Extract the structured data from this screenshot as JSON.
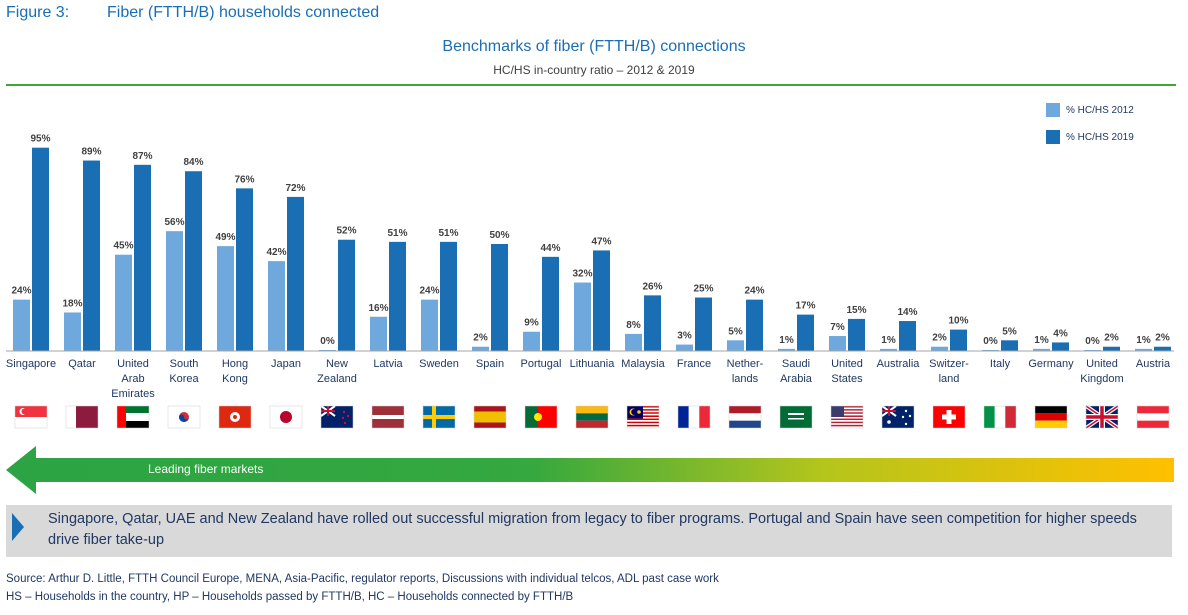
{
  "figure_label": "Figure 3:",
  "figure_title": "Fiber (FTTH/B) households connected",
  "banner": "Leading fiber markets",
  "callout": "Singapore, Qatar, UAE and New Zealand have rolled out successful migration from legacy to fiber programs. Portugal and Spain have seen competition for higher speeds drive fiber take-up",
  "source": "Source: Arthur D. Little, FTTH Council Europe, MENA, Asia-Pacific, regulator reports, Discussions with individual telcos, ADL past case work",
  "definitions": "HS – Households in the country, HP – Households passed by FTTH/B, HC – Households connected by FTTH/B",
  "colors": {
    "series_2012": "#6fa8dc",
    "series_2019": "#1a6eb3",
    "banner_start": "#2ca444",
    "banner_end": "#ffc000"
  },
  "chart_data": {
    "type": "bar",
    "title": "Benchmarks of fiber (FTTH/B) connections",
    "subtitle": "HC/HS in-country ratio – 2012 & 2019",
    "xlabel": "",
    "ylabel": "",
    "ylim": [
      0,
      100
    ],
    "grid": false,
    "legend_position": "top-right",
    "categories": [
      [
        "Singapore"
      ],
      [
        "Qatar"
      ],
      [
        "United",
        "Arab",
        "Emirates"
      ],
      [
        "South",
        "Korea"
      ],
      [
        "Hong",
        "Kong"
      ],
      [
        "Japan"
      ],
      [
        "New",
        "Zealand"
      ],
      [
        "Latvia"
      ],
      [
        "Sweden"
      ],
      [
        "Spain"
      ],
      [
        "Portugal"
      ],
      [
        "Lithuania"
      ],
      [
        "Malaysia"
      ],
      [
        "France"
      ],
      [
        "Nether-",
        "lands"
      ],
      [
        "Saudi",
        "Arabia"
      ],
      [
        "United",
        "States"
      ],
      [
        "Australia"
      ],
      [
        "Switzer-",
        "land"
      ],
      [
        "Italy"
      ],
      [
        "Germany"
      ],
      [
        "United",
        "Kingdom"
      ],
      [
        "Austria"
      ]
    ],
    "series": [
      {
        "name": "% HC/HS 2012",
        "values": [
          24,
          18,
          45,
          56,
          49,
          42,
          0,
          16,
          24,
          2,
          9,
          32,
          8,
          3,
          5,
          1,
          7,
          1,
          2,
          0,
          1,
          0,
          1
        ]
      },
      {
        "name": "% HC/HS 2019",
        "values": [
          95,
          89,
          87,
          84,
          76,
          72,
          52,
          51,
          51,
          50,
          44,
          47,
          26,
          25,
          24,
          17,
          15,
          14,
          10,
          5,
          4,
          2,
          2
        ]
      }
    ],
    "data_labels": [
      [
        "24%",
        "18%",
        "45%",
        "56%",
        "49%",
        "42%",
        "0%",
        "16%",
        "24%",
        "2%",
        "9%",
        "32%",
        "8%",
        "3%",
        "5%",
        "1%",
        "7%",
        "1%",
        "2%",
        "0%",
        "1%",
        "0%",
        "1%"
      ],
      [
        "95%",
        "89%",
        "87%",
        "84%",
        "76%",
        "72%",
        "52%",
        "51%",
        "51%",
        "50%",
        "44%",
        "47%",
        "26%",
        "25%",
        "24%",
        "17%",
        "15%",
        "14%",
        "10%",
        "5%",
        "4%",
        "2%",
        "2%"
      ]
    ],
    "flag_icons": [
      "singapore-flag-icon",
      "qatar-flag-icon",
      "uae-flag-icon",
      "south-korea-flag-icon",
      "hong-kong-flag-icon",
      "japan-flag-icon",
      "new-zealand-flag-icon",
      "latvia-flag-icon",
      "sweden-flag-icon",
      "spain-flag-icon",
      "portugal-flag-icon",
      "lithuania-flag-icon",
      "malaysia-flag-icon",
      "france-flag-icon",
      "netherlands-flag-icon",
      "saudi-arabia-flag-icon",
      "united-states-flag-icon",
      "australia-flag-icon",
      "switzerland-flag-icon",
      "italy-flag-icon",
      "germany-flag-icon",
      "united-kingdom-flag-icon",
      "austria-flag-icon"
    ]
  }
}
